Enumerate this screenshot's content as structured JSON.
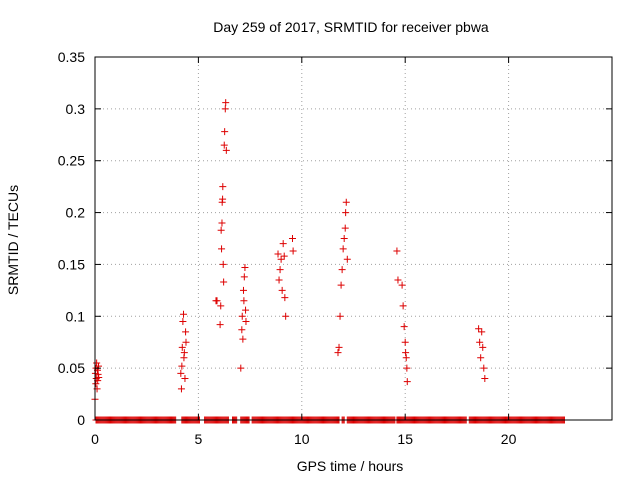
{
  "chart_data": {
    "type": "scatter",
    "title": "Day 259 of 2017, SRMTID for receiver pbwa",
    "xlabel": "GPS time / hours",
    "ylabel": "SRMTID / TECUs",
    "xlim": [
      0,
      25
    ],
    "ylim": [
      0,
      0.35
    ],
    "xticks": [
      "0",
      "5",
      "10",
      "15",
      "20"
    ],
    "xtick_values": [
      0,
      5,
      10,
      15,
      20
    ],
    "yticks": [
      "0",
      "0.05",
      "0.1",
      "0.15",
      "0.2",
      "0.25",
      "0.3",
      "0.35"
    ],
    "ytick_values": [
      0,
      0.05,
      0.1,
      0.15,
      0.2,
      0.25,
      0.3,
      0.35
    ],
    "grid": true,
    "marker": "plus",
    "color": "#dd0000",
    "series": [
      {
        "x": [
          0.0,
          0.02,
          0.04,
          0.05,
          0.06,
          0.08,
          0.1,
          0.12,
          0.13,
          0.15,
          0.17,
          0.18,
          4.15,
          4.18,
          4.2,
          4.22,
          4.25,
          4.28,
          4.3,
          4.32,
          4.35,
          4.38,
          4.4,
          5.85,
          5.9,
          6.05,
          6.08,
          6.1,
          6.12,
          6.14,
          6.15,
          6.17,
          6.18,
          6.2,
          6.22,
          6.25,
          6.27,
          6.3,
          6.32,
          6.35,
          7.05,
          7.1,
          7.12,
          7.15,
          7.18,
          7.2,
          7.22,
          7.25,
          7.28,
          7.3,
          8.85,
          8.9,
          8.95,
          9.0,
          9.05,
          9.1,
          9.15,
          9.18,
          9.22,
          9.55,
          9.58,
          11.75,
          11.8,
          11.85,
          11.9,
          11.95,
          12.0,
          12.05,
          12.1,
          12.12,
          12.15,
          12.2,
          14.6,
          14.65,
          14.85,
          14.9,
          14.95,
          15.0,
          15.02,
          15.05,
          15.08,
          15.1,
          18.55,
          18.6,
          18.65,
          18.7,
          18.75,
          18.8,
          18.85
        ],
        "y": [
          0.02,
          0.045,
          0.035,
          0.05,
          0.04,
          0.055,
          0.03,
          0.048,
          0.038,
          0.044,
          0.052,
          0.041,
          0.045,
          0.03,
          0.052,
          0.07,
          0.095,
          0.102,
          0.06,
          0.065,
          0.04,
          0.085,
          0.075,
          0.115,
          0.115,
          0.092,
          0.11,
          0.183,
          0.165,
          0.19,
          0.21,
          0.213,
          0.225,
          0.15,
          0.133,
          0.265,
          0.278,
          0.3,
          0.306,
          0.26,
          0.05,
          0.087,
          0.1,
          0.078,
          0.125,
          0.115,
          0.138,
          0.147,
          0.106,
          0.095,
          0.16,
          0.135,
          0.145,
          0.155,
          0.125,
          0.17,
          0.158,
          0.118,
          0.1,
          0.175,
          0.163,
          0.065,
          0.07,
          0.1,
          0.13,
          0.145,
          0.165,
          0.175,
          0.185,
          0.2,
          0.21,
          0.155,
          0.163,
          0.135,
          0.13,
          0.11,
          0.09,
          0.075,
          0.065,
          0.06,
          0.05,
          0.037,
          0.088,
          0.075,
          0.06,
          0.085,
          0.07,
          0.05,
          0.04
        ]
      },
      {
        "x_start": 0.05,
        "x_end": 22.7,
        "step": 0.05,
        "y": 0.0,
        "gaps": [
          [
            3.9,
            4.15
          ],
          [
            5.05,
            5.25
          ],
          [
            6.45,
            6.6
          ],
          [
            6.85,
            7.0
          ],
          [
            7.45,
            7.55
          ],
          [
            11.85,
            11.95
          ],
          [
            12.1,
            12.2
          ],
          [
            14.55,
            14.6
          ],
          [
            18.0,
            18.1
          ]
        ]
      }
    ]
  }
}
